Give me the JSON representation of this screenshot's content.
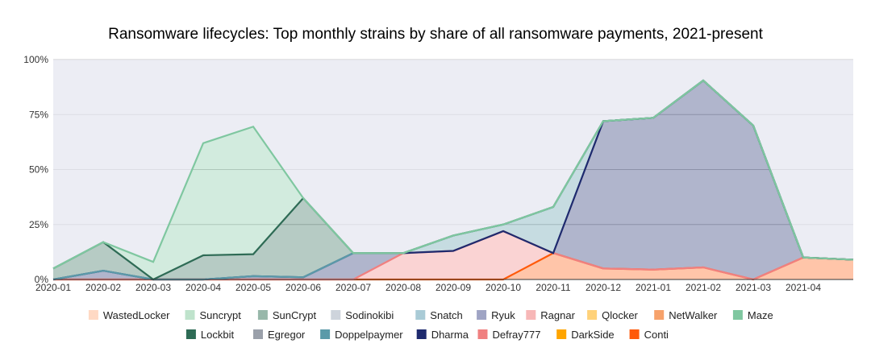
{
  "chart_data": {
    "type": "area",
    "title": "Ransomware lifecycles: Top monthly strains by share of all ransomware payments, 2021-present",
    "xlabel": "",
    "ylabel": "",
    "ylim": [
      0,
      100
    ],
    "yticks": [
      "0%",
      "25%",
      "50%",
      "75%",
      "100%"
    ],
    "ytick_values": [
      0,
      25,
      50,
      75,
      100
    ],
    "grid": true,
    "legend_position": "bottom",
    "categories": [
      "2020-01",
      "2020-02",
      "2020-03",
      "2020-04",
      "2020-05",
      "2020-06",
      "2020-07",
      "2020-08",
      "2020-09",
      "2020-10",
      "2020-11",
      "2020-12",
      "2021-01",
      "2021-02",
      "2021-03",
      "2021-04",
      ""
    ],
    "x_tick_labels": [
      "2020-01",
      "2020-02",
      "2020-03",
      "2020-04",
      "2020-05",
      "2020-06",
      "2020-07",
      "2020-08",
      "2020-09",
      "2020-10",
      "2020-11",
      "2020-12",
      "2021-01",
      "2021-02",
      "2021-03",
      "2021-04"
    ],
    "series": [
      {
        "name": "Conti",
        "color": "#ff5a0a",
        "values": [
          0,
          0,
          0,
          0,
          0,
          0,
          0,
          0,
          0,
          0,
          12,
          5,
          4.5,
          5.5,
          0,
          10,
          9
        ]
      },
      {
        "name": "DarkSide",
        "color": "#ffa500",
        "values": [
          0,
          0,
          0,
          0,
          0,
          0,
          0,
          0,
          0,
          0,
          0,
          0,
          0,
          0,
          0,
          0,
          0
        ]
      },
      {
        "name": "Defray777",
        "color": "#f08080",
        "values": [
          0,
          0,
          0,
          0,
          0,
          0,
          0,
          12,
          13,
          22,
          0,
          0,
          0,
          0,
          0,
          0,
          0
        ]
      },
      {
        "name": "Dharma",
        "color": "#1e2a6e",
        "values": [
          0,
          4,
          0,
          0,
          1.5,
          1,
          12,
          0,
          0,
          0,
          0,
          67,
          69,
          85,
          70,
          0,
          0
        ]
      },
      {
        "name": "Doppelpaymer",
        "color": "#5b9aa9",
        "values": [
          0,
          0,
          0,
          0,
          0,
          0,
          0,
          0,
          7,
          3,
          21,
          0,
          0,
          0,
          0,
          0,
          0
        ]
      },
      {
        "name": "Egregor",
        "color": "#9aa0aa",
        "values": [
          0,
          0,
          0,
          0,
          0,
          0,
          0,
          0,
          0,
          0,
          0,
          0,
          0,
          0,
          0,
          0,
          0
        ]
      },
      {
        "name": "Lockbit",
        "color": "#2e6b55",
        "values": [
          5,
          13,
          0,
          11,
          10,
          36,
          0,
          0,
          0,
          0,
          0,
          0,
          0,
          0,
          0,
          0,
          0
        ]
      },
      {
        "name": "Maze",
        "color": "#7fc7a0",
        "values": [
          0,
          0,
          8,
          51,
          58,
          0,
          0,
          0,
          0,
          0,
          0,
          0,
          0,
          0,
          0,
          0,
          0
        ]
      },
      {
        "name": "NetWalker",
        "color": "#f7a26b",
        "values": [
          0,
          0,
          0,
          0,
          0,
          0,
          0,
          0,
          0,
          0,
          0,
          0,
          0,
          0,
          0,
          0,
          0
        ]
      },
      {
        "name": "Qlocker",
        "color": "#ffd27a",
        "values": [
          0,
          0,
          0,
          0,
          0,
          0,
          0,
          0,
          0,
          0,
          0,
          0,
          0,
          0,
          0,
          0,
          0
        ]
      },
      {
        "name": "Ragnar",
        "color": "#f7b7b7",
        "values": [
          0,
          0,
          0,
          0,
          0,
          0,
          0,
          0,
          0,
          0,
          0,
          0,
          0,
          0,
          0,
          0,
          0
        ]
      },
      {
        "name": "Ryuk",
        "color": "#9fa4c4",
        "values": [
          0,
          0,
          0,
          0,
          0,
          0,
          0,
          0,
          0,
          0,
          0,
          0,
          0,
          0,
          0,
          0,
          0
        ]
      },
      {
        "name": "Snatch",
        "color": "#a9cbd6",
        "values": [
          0,
          0,
          0,
          0,
          0,
          0,
          0,
          0,
          0,
          0,
          0,
          0,
          0,
          0,
          0,
          0,
          0
        ]
      },
      {
        "name": "Sodinokibi",
        "color": "#ced4dc",
        "values": [
          0,
          0,
          0,
          0,
          0,
          0,
          0,
          0,
          0,
          0,
          0,
          0,
          0,
          0,
          0,
          0,
          0
        ]
      },
      {
        "name": "SunCrypt",
        "color": "#98b8aa",
        "values": [
          0,
          0,
          0,
          0,
          0,
          0,
          0,
          0,
          0,
          0,
          0,
          0,
          0,
          0,
          0,
          0,
          0
        ]
      },
      {
        "name": "Suncrypt",
        "color": "#bfe3cc",
        "values": [
          0,
          0,
          0,
          0,
          0,
          0,
          0,
          0,
          0,
          0,
          0,
          0,
          0,
          0,
          0,
          0,
          0
        ]
      },
      {
        "name": "WastedLocker",
        "color": "#ffd9c4",
        "values": [
          0,
          0,
          0,
          0,
          0,
          0,
          0,
          0,
          0,
          0,
          0,
          0,
          0,
          0,
          0,
          0,
          0
        ]
      }
    ],
    "legend_order": [
      "WastedLocker",
      "Suncrypt",
      "SunCrypt",
      "Sodinokibi",
      "Snatch",
      "Ryuk",
      "Ragnar",
      "Qlocker",
      "NetWalker",
      "Maze",
      "Lockbit",
      "Egregor",
      "Doppelpaymer",
      "Dharma",
      "Defray777",
      "DarkSide",
      "Conti"
    ]
  }
}
